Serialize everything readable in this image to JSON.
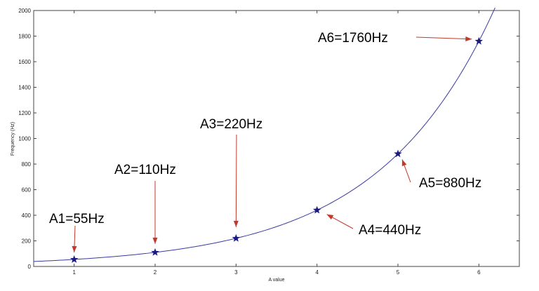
{
  "chart_data": {
    "type": "line",
    "xlabel": "A value",
    "ylabel": "Frequency (Hz)",
    "xlim": [
      0.5,
      6.5
    ],
    "ylim": [
      0,
      2000
    ],
    "x_ticks": [
      1,
      2,
      3,
      4,
      5,
      6
    ],
    "y_ticks": [
      0,
      200,
      400,
      600,
      800,
      1000,
      1200,
      1400,
      1600,
      1800,
      2000
    ],
    "grid": false,
    "curve": {
      "x_start": 0.5,
      "x_end": 6.2,
      "color": "#3a3aa0"
    },
    "series": [
      {
        "marker": "star",
        "color": "#1a1a80",
        "x": [
          1,
          2,
          3,
          4,
          5,
          6
        ],
        "y": [
          55,
          110,
          220,
          440,
          880,
          1760
        ]
      }
    ],
    "annotations": [
      {
        "label": "A1=55Hz",
        "point": [
          1,
          55
        ]
      },
      {
        "label": "A2=110Hz",
        "point": [
          2,
          110
        ]
      },
      {
        "label": "A3=220Hz",
        "point": [
          3,
          220
        ]
      },
      {
        "label": "A4=440Hz",
        "point": [
          4,
          440
        ]
      },
      {
        "label": "A5=880Hz",
        "point": [
          5,
          880
        ]
      },
      {
        "label": "A6=1760Hz",
        "point": [
          6,
          1760
        ]
      }
    ],
    "arrow_color": "#c0392b"
  }
}
